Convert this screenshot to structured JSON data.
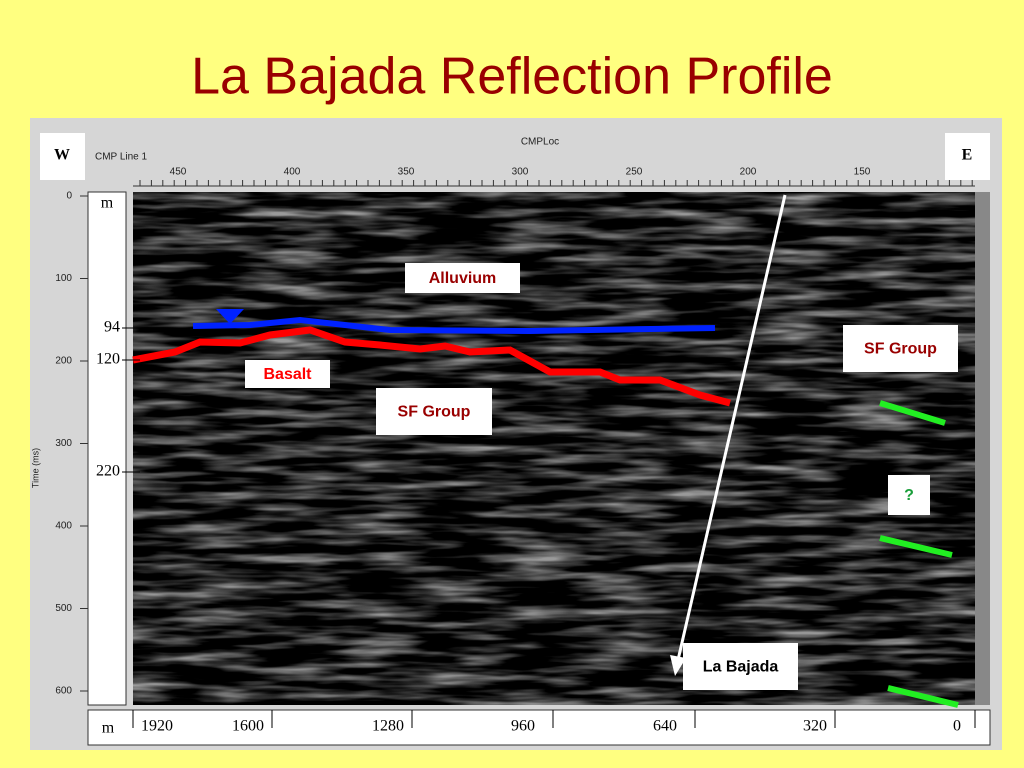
{
  "title": "La Bajada Reflection Profile",
  "image": {
    "west": "W",
    "east": "E",
    "top_axis": {
      "line": "CMP Line 1",
      "label": "CMPLoc",
      "ticks": [
        "450",
        "400",
        "350",
        "300",
        "250",
        "200",
        "150"
      ]
    },
    "time_axis": {
      "label": "Time (ms)",
      "ticks": [
        "0",
        "100",
        "200",
        "300",
        "400",
        "500",
        "600"
      ]
    },
    "depth_labels": [
      "m",
      "94",
      "120",
      "220"
    ],
    "distance_axis": {
      "unit": "m",
      "ticks": [
        "1920",
        "1600",
        "1280",
        "960",
        "640",
        "320",
        "0"
      ]
    },
    "annotations": [
      "Alluvium",
      "Basalt",
      "SF Group",
      "SF Group",
      "?",
      "La Bajada"
    ]
  }
}
